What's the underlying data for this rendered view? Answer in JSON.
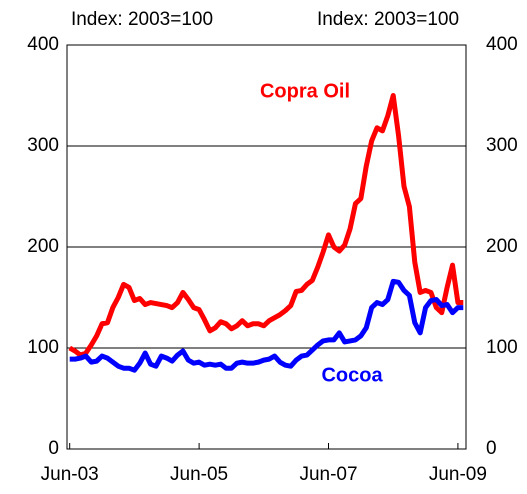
{
  "chart_data": {
    "type": "line",
    "y_label_left": "Index: 2003=100",
    "y_label_right": "Index: 2003=100",
    "categories": [
      "Jun-03",
      null,
      null,
      null,
      null,
      null,
      null,
      null,
      null,
      null,
      null,
      null,
      null,
      null,
      null,
      null,
      null,
      null,
      null,
      null,
      null,
      null,
      null,
      null,
      "Jun-05",
      null,
      null,
      null,
      null,
      null,
      null,
      null,
      null,
      null,
      null,
      null,
      null,
      null,
      null,
      null,
      null,
      null,
      null,
      null,
      null,
      null,
      null,
      null,
      "Jun-07",
      null,
      null,
      null,
      null,
      null,
      null,
      null,
      null,
      null,
      null,
      null,
      null,
      null,
      null,
      null,
      null,
      null,
      null,
      null,
      null,
      null,
      null,
      null,
      "Jun-09",
      null
    ],
    "series": [
      {
        "name": "Copra Oil",
        "color": "#ff0000",
        "values": [
          100,
          97,
          93,
          95,
          103,
          112,
          124,
          125,
          140,
          150,
          163,
          160,
          147,
          149,
          143,
          145,
          144,
          143,
          142,
          140,
          145,
          155,
          148,
          140,
          138,
          128,
          117,
          120,
          126,
          124,
          119,
          122,
          127,
          122,
          124,
          124,
          122,
          127,
          130,
          133,
          137,
          142,
          156,
          157,
          163,
          167,
          180,
          195,
          212,
          200,
          196,
          202,
          218,
          243,
          248,
          280,
          305,
          318,
          315,
          330,
          350,
          310,
          260,
          240,
          185,
          155,
          157,
          155,
          140,
          135,
          160,
          182,
          145,
          145
        ]
      },
      {
        "name": "Cocoa",
        "color": "#0000ff",
        "values": [
          89,
          89,
          90,
          92,
          86,
          87,
          92,
          90,
          86,
          82,
          80,
          80,
          78,
          85,
          95,
          84,
          82,
          92,
          90,
          87,
          93,
          97,
          88,
          85,
          86,
          83,
          84,
          83,
          84,
          80,
          80,
          85,
          86,
          85,
          85,
          86,
          88,
          89,
          92,
          86,
          83,
          82,
          88,
          92,
          93,
          98,
          103,
          107,
          108,
          108,
          115,
          106,
          107,
          108,
          112,
          120,
          140,
          145,
          143,
          148,
          166,
          165,
          157,
          152,
          125,
          115,
          140,
          147,
          148,
          142,
          143,
          135,
          140,
          140
        ]
      }
    ],
    "ylim": [
      0,
      400
    ],
    "yticks": [
      0,
      100,
      200,
      300,
      400
    ],
    "grid": true
  }
}
